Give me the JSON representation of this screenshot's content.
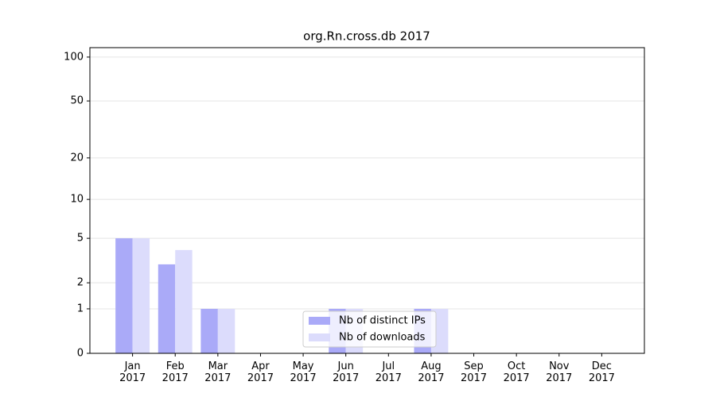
{
  "chart_data": {
    "type": "bar",
    "title": "org.Rn.cross.db 2017",
    "categories": [
      "Jan\n2017",
      "Feb\n2017",
      "Mar\n2017",
      "Apr\n2017",
      "May\n2017",
      "Jun\n2017",
      "Jul\n2017",
      "Aug\n2017",
      "Sep\n2017",
      "Oct\n2017",
      "Nov\n2017",
      "Dec\n2017"
    ],
    "series": [
      {
        "name": "Nb of distinct IPs",
        "color": "#aaaaf8",
        "values": [
          5,
          3,
          1,
          0,
          0,
          1,
          0,
          1,
          0,
          0,
          0,
          0
        ]
      },
      {
        "name": "Nb of downloads",
        "color": "#dcdcfc",
        "values": [
          5,
          4,
          1,
          0,
          0,
          1,
          0,
          1,
          0,
          0,
          0,
          0
        ]
      }
    ],
    "yscale": "log1p",
    "ylim": [
      0,
      116
    ],
    "yticks": [
      0,
      1,
      2,
      5,
      10,
      20,
      50,
      100
    ],
    "grid": true,
    "legend": "lower center"
  }
}
